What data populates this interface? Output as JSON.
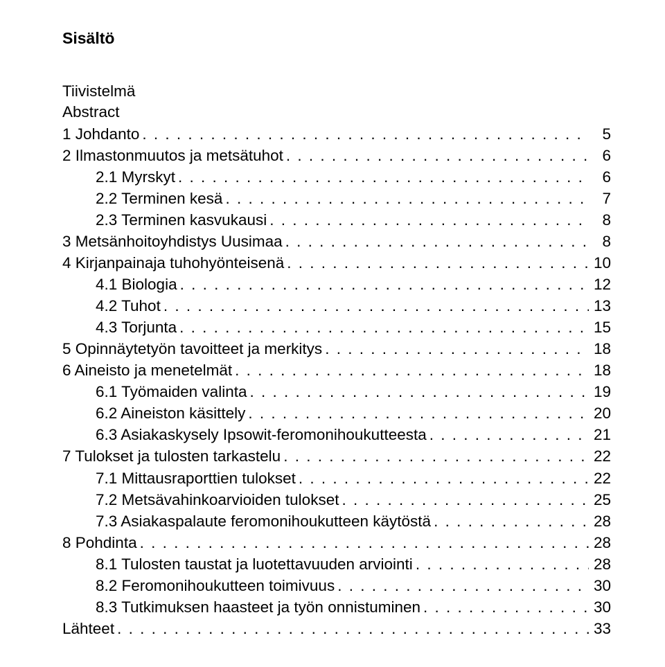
{
  "title": "Sisältö",
  "pre": [
    "Tiivistelmä",
    "Abstract"
  ],
  "entries": [
    {
      "label": "1  Johdanto",
      "page": "5",
      "indent": 0
    },
    {
      "label": "2  Ilmastonmuutos ja metsätuhot",
      "page": "6",
      "indent": 0
    },
    {
      "label": "2.1   Myrskyt",
      "page": "6",
      "indent": 1
    },
    {
      "label": "2.2   Terminen kesä",
      "page": "7",
      "indent": 1
    },
    {
      "label": "2.3   Terminen kasvukausi",
      "page": "8",
      "indent": 1
    },
    {
      "label": "3  Metsänhoitoyhdistys Uusimaa",
      "page": "8",
      "indent": 0
    },
    {
      "label": "4  Kirjanpainaja tuhohyönteisenä",
      "page": "10",
      "indent": 0
    },
    {
      "label": "4.1   Biologia",
      "page": "12",
      "indent": 1
    },
    {
      "label": "4.2   Tuhot",
      "page": "13",
      "indent": 1
    },
    {
      "label": "4.3   Torjunta",
      "page": "15",
      "indent": 1
    },
    {
      "label": "5  Opinnäytetyön tavoitteet ja merkitys",
      "page": "18",
      "indent": 0
    },
    {
      "label": "6  Aineisto ja menetelmät",
      "page": "18",
      "indent": 0
    },
    {
      "label": "6.1   Työmaiden valinta",
      "page": "19",
      "indent": 1
    },
    {
      "label": "6.2   Aineiston käsittely",
      "page": "20",
      "indent": 1
    },
    {
      "label": "6.3   Asiakaskysely Ipsowit-feromonihoukutteesta",
      "page": "21",
      "indent": 1
    },
    {
      "label": "7  Tulokset ja tulosten tarkastelu",
      "page": "22",
      "indent": 0
    },
    {
      "label": "7.1   Mittausraporttien tulokset",
      "page": "22",
      "indent": 1
    },
    {
      "label": "7.2   Metsävahinkoarvioiden tulokset",
      "page": "25",
      "indent": 1
    },
    {
      "label": "7.3   Asiakaspalaute feromonihoukutteen käytöstä",
      "page": "28",
      "indent": 1
    },
    {
      "label": "8  Pohdinta",
      "page": "28",
      "indent": 0
    },
    {
      "label": "8.1   Tulosten taustat ja luotettavuuden arviointi",
      "page": "28",
      "indent": 1
    },
    {
      "label": "8.2   Feromonihoukutteen toimivuus",
      "page": "30",
      "indent": 1
    },
    {
      "label": "8.3   Tutkimuksen haasteet ja työn onnistuminen",
      "page": "30",
      "indent": 1
    },
    {
      "label": "Lähteet",
      "page": "33",
      "indent": 0
    }
  ]
}
